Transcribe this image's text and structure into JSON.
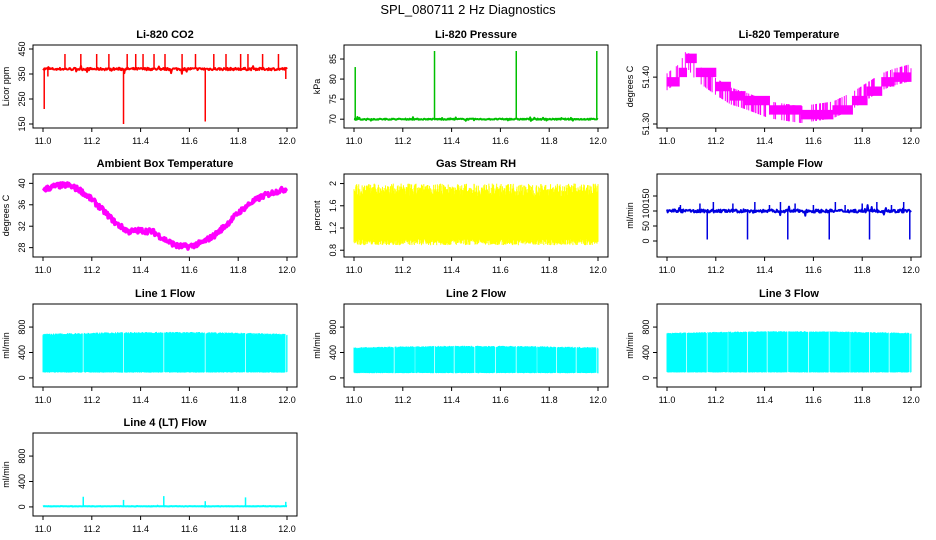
{
  "figure": {
    "title": "SPL_080711  2 Hz Diagnostics",
    "layout": "3 columns x 4 rows"
  },
  "chart_data": [
    {
      "type": "line",
      "title": "Li-820 CO2",
      "xlabel": "",
      "ylabel": "Licor ppm",
      "color": "#ff0000",
      "xlim": [
        11.0,
        12.0
      ],
      "ylim": [
        150,
        450
      ],
      "xticks": [
        "11.0",
        "11.2",
        "11.4",
        "11.6",
        "11.8",
        "12.0"
      ],
      "yticks": [
        150,
        250,
        350,
        450
      ],
      "series": [
        {
          "pattern": "noisy-baseline",
          "baseline": 370,
          "noise": 5,
          "rise": 0,
          "spikes": [
            [
              11.005,
              210
            ],
            [
              11.02,
              340
            ],
            [
              11.09,
              430
            ],
            [
              11.155,
              430
            ],
            [
              11.22,
              430
            ],
            [
              11.27,
              430
            ],
            [
              11.33,
              150
            ],
            [
              11.345,
              430
            ],
            [
              11.38,
              430
            ],
            [
              11.41,
              430
            ],
            [
              11.455,
              430
            ],
            [
              11.5,
              430
            ],
            [
              11.57,
              430
            ],
            [
              11.625,
              430
            ],
            [
              11.665,
              160
            ],
            [
              11.7,
              430
            ],
            [
              11.75,
              430
            ],
            [
              11.81,
              430
            ],
            [
              11.84,
              430
            ],
            [
              11.9,
              430
            ],
            [
              11.965,
              430
            ],
            [
              11.995,
              330
            ]
          ]
        }
      ]
    },
    {
      "type": "line",
      "title": "Li-820 Pressure",
      "xlabel": "",
      "ylabel": "kPa",
      "color": "#00c000",
      "xlim": [
        11.0,
        12.0
      ],
      "ylim": [
        68.8,
        87.5
      ],
      "xticks": [
        "11.0",
        "11.2",
        "11.4",
        "11.6",
        "11.8",
        "12.0"
      ],
      "yticks": [
        70,
        75,
        80,
        85
      ],
      "series": [
        {
          "pattern": "noisy-baseline",
          "baseline": 70,
          "noise": 0.15,
          "rise": 0,
          "spikes": [
            [
              11.005,
              83
            ],
            [
              11.33,
              87
            ],
            [
              11.665,
              87
            ],
            [
              11.995,
              87
            ]
          ]
        }
      ]
    },
    {
      "type": "line",
      "title": "Li-820 Temperature",
      "xlabel": "",
      "ylabel": "degrees C",
      "color": "#ff00ff",
      "xlim": [
        11.0,
        12.0
      ],
      "ylim": [
        51.3,
        51.46
      ],
      "xticks": [
        "11.0",
        "11.2",
        "11.4",
        "11.6",
        "11.8",
        "12.0"
      ],
      "yticks": [
        51.3,
        51.4
      ],
      "ylabels": [
        "51.30",
        "51.40"
      ],
      "series": [
        {
          "pattern": "steps",
          "x": [
            11.0,
            11.05,
            11.08,
            11.12,
            11.2,
            11.26,
            11.32,
            11.42,
            11.55,
            11.68,
            11.76,
            11.82,
            11.88,
            11.93,
            12.0
          ],
          "y": [
            51.39,
            51.41,
            51.44,
            51.41,
            51.38,
            51.36,
            51.35,
            51.33,
            51.32,
            51.33,
            51.35,
            51.37,
            51.39,
            51.4,
            51.41
          ],
          "band": 0.018
        }
      ]
    },
    {
      "type": "line",
      "title": "Ambient Box Temperature",
      "xlabel": "",
      "ylabel": "degrees C",
      "color": "#ff00ff",
      "xlim": [
        11.0,
        12.0
      ],
      "ylim": [
        27.0,
        41.0
      ],
      "xticks": [
        "11.0",
        "11.2",
        "11.4",
        "11.6",
        "11.8",
        "12.0"
      ],
      "yticks": [
        28,
        32,
        36,
        40
      ],
      "series": [
        {
          "pattern": "smooth",
          "noise": 0.5,
          "x": [
            11.0,
            11.05,
            11.1,
            11.15,
            11.2,
            11.25,
            11.3,
            11.35,
            11.4,
            11.45,
            11.5,
            11.55,
            11.6,
            11.65,
            11.7,
            11.75,
            11.8,
            11.85,
            11.9,
            11.95,
            12.0
          ],
          "y": [
            38.8,
            39.5,
            39.7,
            38.8,
            37.0,
            34.8,
            32.5,
            31.0,
            31.2,
            31.0,
            29.5,
            28.3,
            28.2,
            28.9,
            30.2,
            32.2,
            34.5,
            36.3,
            37.6,
            38.4,
            39.0
          ]
        }
      ]
    },
    {
      "type": "area",
      "title": "Gas Stream RH",
      "xlabel": "",
      "ylabel": "percent",
      "color": "#ffff00",
      "xlim": [
        11.0,
        12.0
      ],
      "ylim": [
        0.75,
        2.1
      ],
      "xticks": [
        "11.0",
        "11.2",
        "11.4",
        "11.6",
        "11.8",
        "12.0"
      ],
      "yticks": [
        0.8,
        1.2,
        1.6,
        2.0
      ],
      "series": [
        {
          "pattern": "band",
          "low": 0.95,
          "high": 1.88,
          "jitter": 0.12
        }
      ]
    },
    {
      "type": "line",
      "title": "Sample Flow",
      "xlabel": "",
      "ylabel": "ml/min",
      "color": "#0000e0",
      "xlim": [
        11.0,
        12.0
      ],
      "ylim": [
        -40,
        210
      ],
      "xticks": [
        "11.0",
        "11.2",
        "11.4",
        "11.6",
        "11.8",
        "12.0"
      ],
      "yticks": [
        0,
        50,
        100,
        150
      ],
      "series": [
        {
          "pattern": "noisy-baseline",
          "baseline": 100,
          "noise": 5,
          "rise": 0,
          "spikes": [
            [
              11.055,
              120
            ],
            [
              11.135,
              125
            ],
            [
              11.165,
              5
            ],
            [
              11.19,
              130
            ],
            [
              11.27,
              125
            ],
            [
              11.33,
              5
            ],
            [
              11.36,
              130
            ],
            [
              11.42,
              120
            ],
            [
              11.465,
              130
            ],
            [
              11.495,
              5
            ],
            [
              11.525,
              125
            ],
            [
              11.6,
              120
            ],
            [
              11.665,
              5
            ],
            [
              11.69,
              130
            ],
            [
              11.73,
              120
            ],
            [
              11.8,
              125
            ],
            [
              11.83,
              5
            ],
            [
              11.86,
              130
            ],
            [
              11.92,
              120
            ],
            [
              11.97,
              130
            ],
            [
              11.995,
              5
            ]
          ]
        }
      ]
    },
    {
      "type": "area",
      "title": "Line 1 Flow",
      "xlabel": "",
      "ylabel": "ml/min",
      "color": "#00ffff",
      "xlim": [
        11.0,
        12.0
      ],
      "ylim": [
        -80,
        1100
      ],
      "xticks": [
        "11.0",
        "11.2",
        "11.4",
        "11.6",
        "11.8",
        "12.0"
      ],
      "yticks": [
        0,
        400,
        800
      ],
      "series": [
        {
          "pattern": "band",
          "low": 90,
          "high": 680,
          "jitter": 15,
          "rise": 30,
          "gaps": [
            11.165,
            11.33,
            11.495,
            11.665,
            11.83,
            11.995
          ]
        }
      ]
    },
    {
      "type": "area",
      "title": "Line 2 Flow",
      "xlabel": "",
      "ylabel": "ml/min",
      "color": "#00ffff",
      "xlim": [
        11.0,
        12.0
      ],
      "ylim": [
        -80,
        1100
      ],
      "xticks": [
        "11.0",
        "11.2",
        "11.4",
        "11.6",
        "11.8",
        "12.0"
      ],
      "yticks": [
        0,
        400,
        800
      ],
      "series": [
        {
          "pattern": "band",
          "low": 80,
          "high": 470,
          "jitter": 12,
          "rise": 25,
          "gaps": [
            11.165,
            11.25,
            11.33,
            11.41,
            11.495,
            11.58,
            11.665,
            11.75,
            11.83,
            11.91,
            11.995
          ]
        }
      ]
    },
    {
      "type": "area",
      "title": "Line 3 Flow",
      "xlabel": "",
      "ylabel": "ml/min",
      "color": "#00ffff",
      "xlim": [
        11.0,
        12.0
      ],
      "ylim": [
        -80,
        1100
      ],
      "xticks": [
        "11.0",
        "11.2",
        "11.4",
        "11.6",
        "11.8",
        "12.0"
      ],
      "yticks": [
        0,
        400,
        800
      ],
      "series": [
        {
          "pattern": "band",
          "low": 90,
          "high": 700,
          "jitter": 10,
          "rise": 25,
          "gaps": [
            11.08,
            11.165,
            11.25,
            11.33,
            11.41,
            11.495,
            11.58,
            11.665,
            11.75,
            11.83,
            11.91,
            11.995
          ]
        }
      ]
    },
    {
      "type": "line",
      "title": "Line 4 (LT) Flow",
      "xlabel": "",
      "ylabel": "ml/min",
      "color": "#00ffff",
      "xlim": [
        11.0,
        12.0
      ],
      "ylim": [
        -80,
        1100
      ],
      "xticks": [
        "11.0",
        "11.2",
        "11.4",
        "11.6",
        "11.8",
        "12.0"
      ],
      "yticks": [
        0,
        400,
        800
      ],
      "series": [
        {
          "pattern": "noisy-baseline",
          "baseline": 10,
          "noise": 3,
          "rise": 0,
          "spikes": [
            [
              11.165,
              160
            ],
            [
              11.33,
              110
            ],
            [
              11.495,
              170
            ],
            [
              11.665,
              90
            ],
            [
              11.83,
              150
            ],
            [
              11.995,
              80
            ]
          ]
        }
      ]
    }
  ]
}
